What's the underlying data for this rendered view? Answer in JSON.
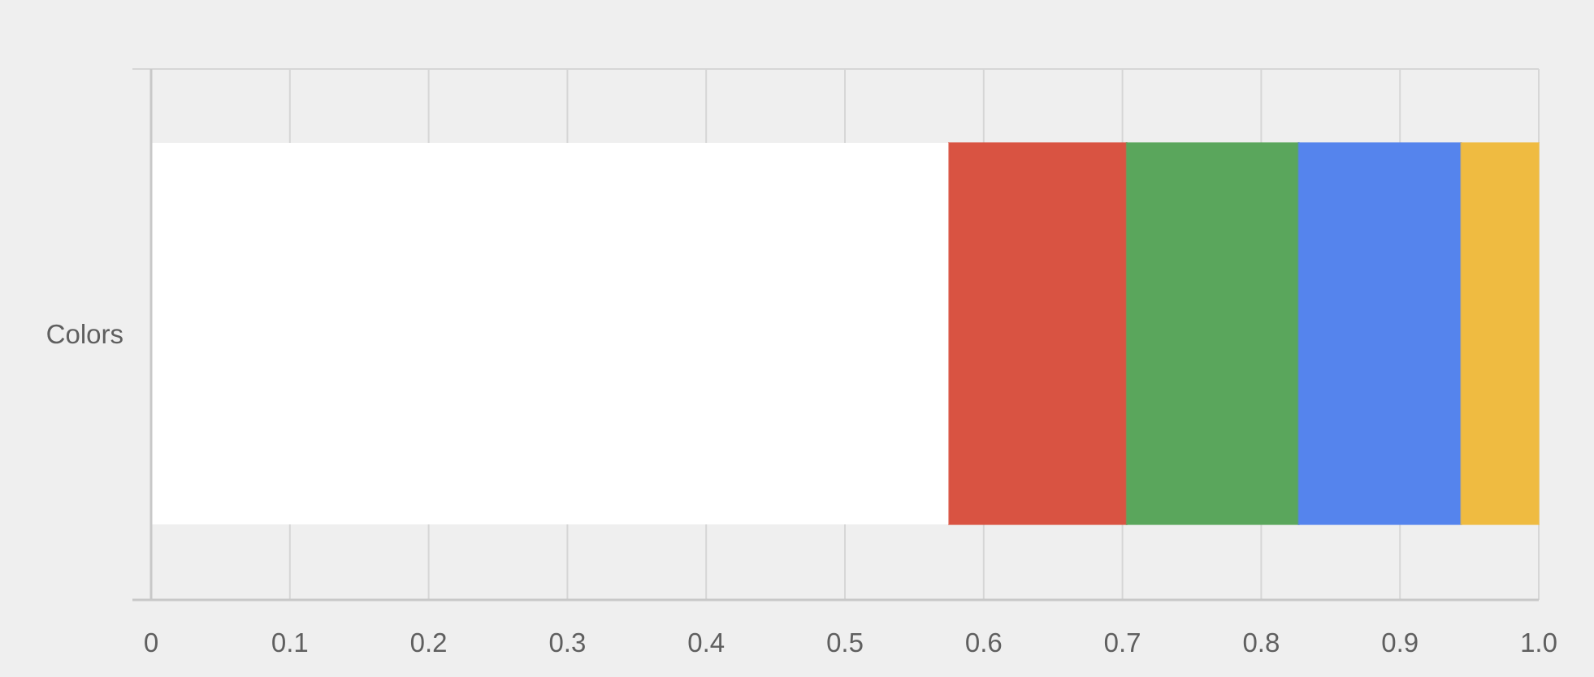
{
  "chart_data": {
    "type": "bar",
    "orientation": "horizontal",
    "stacked": true,
    "categories": [
      "Colors"
    ],
    "series": [
      {
        "values": [
          0.575
        ],
        "color": "#ffffff"
      },
      {
        "values": [
          0.128
        ],
        "color": "#d95342"
      },
      {
        "values": [
          0.124
        ],
        "color": "#5aa65c"
      },
      {
        "values": [
          0.117
        ],
        "color": "#5584ed"
      },
      {
        "values": [
          0.056
        ],
        "color": "#efbb41"
      }
    ],
    "xlim": [
      0,
      1.0
    ],
    "x_ticks": [
      "0",
      "0.1",
      "0.2",
      "0.3",
      "0.4",
      "0.5",
      "0.6",
      "0.7",
      "0.8",
      "0.9",
      "1.0"
    ],
    "grid": true,
    "title": "",
    "xlabel": "",
    "ylabel": ""
  },
  "colors": {
    "background": "#efefef",
    "gridline": "#d6d6d6",
    "axis": "#c8c8c8"
  }
}
